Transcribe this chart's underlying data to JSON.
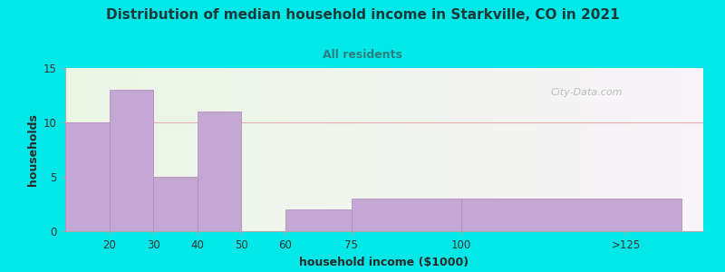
{
  "title": "Distribution of median household income in Starkville, CO in 2021",
  "subtitle": "All residents",
  "xlabel": "household income ($1000)",
  "ylabel": "households",
  "bar_labels": [
    "20",
    "30",
    "40",
    "50",
    "60",
    "75",
    "100",
    ">125"
  ],
  "bar_values": [
    10,
    13,
    5,
    11,
    0,
    2,
    3,
    3
  ],
  "bar_color": "#c4a8d4",
  "bar_edge_color": "#b090c0",
  "ylim": [
    0,
    15
  ],
  "yticks": [
    0,
    5,
    10,
    15
  ],
  "background_color": "#00e8e8",
  "title_color": "#1a3a3a",
  "subtitle_color": "#2a8080",
  "title_fontsize": 11,
  "subtitle_fontsize": 9,
  "axis_label_fontsize": 9,
  "watermark_text": "City-Data.com",
  "bar_lefts": [
    10,
    20,
    30,
    40,
    50,
    60,
    75,
    100
  ],
  "bar_rights": [
    20,
    30,
    40,
    50,
    60,
    75,
    100,
    150
  ],
  "xlim_left": 10,
  "xlim_right": 155
}
